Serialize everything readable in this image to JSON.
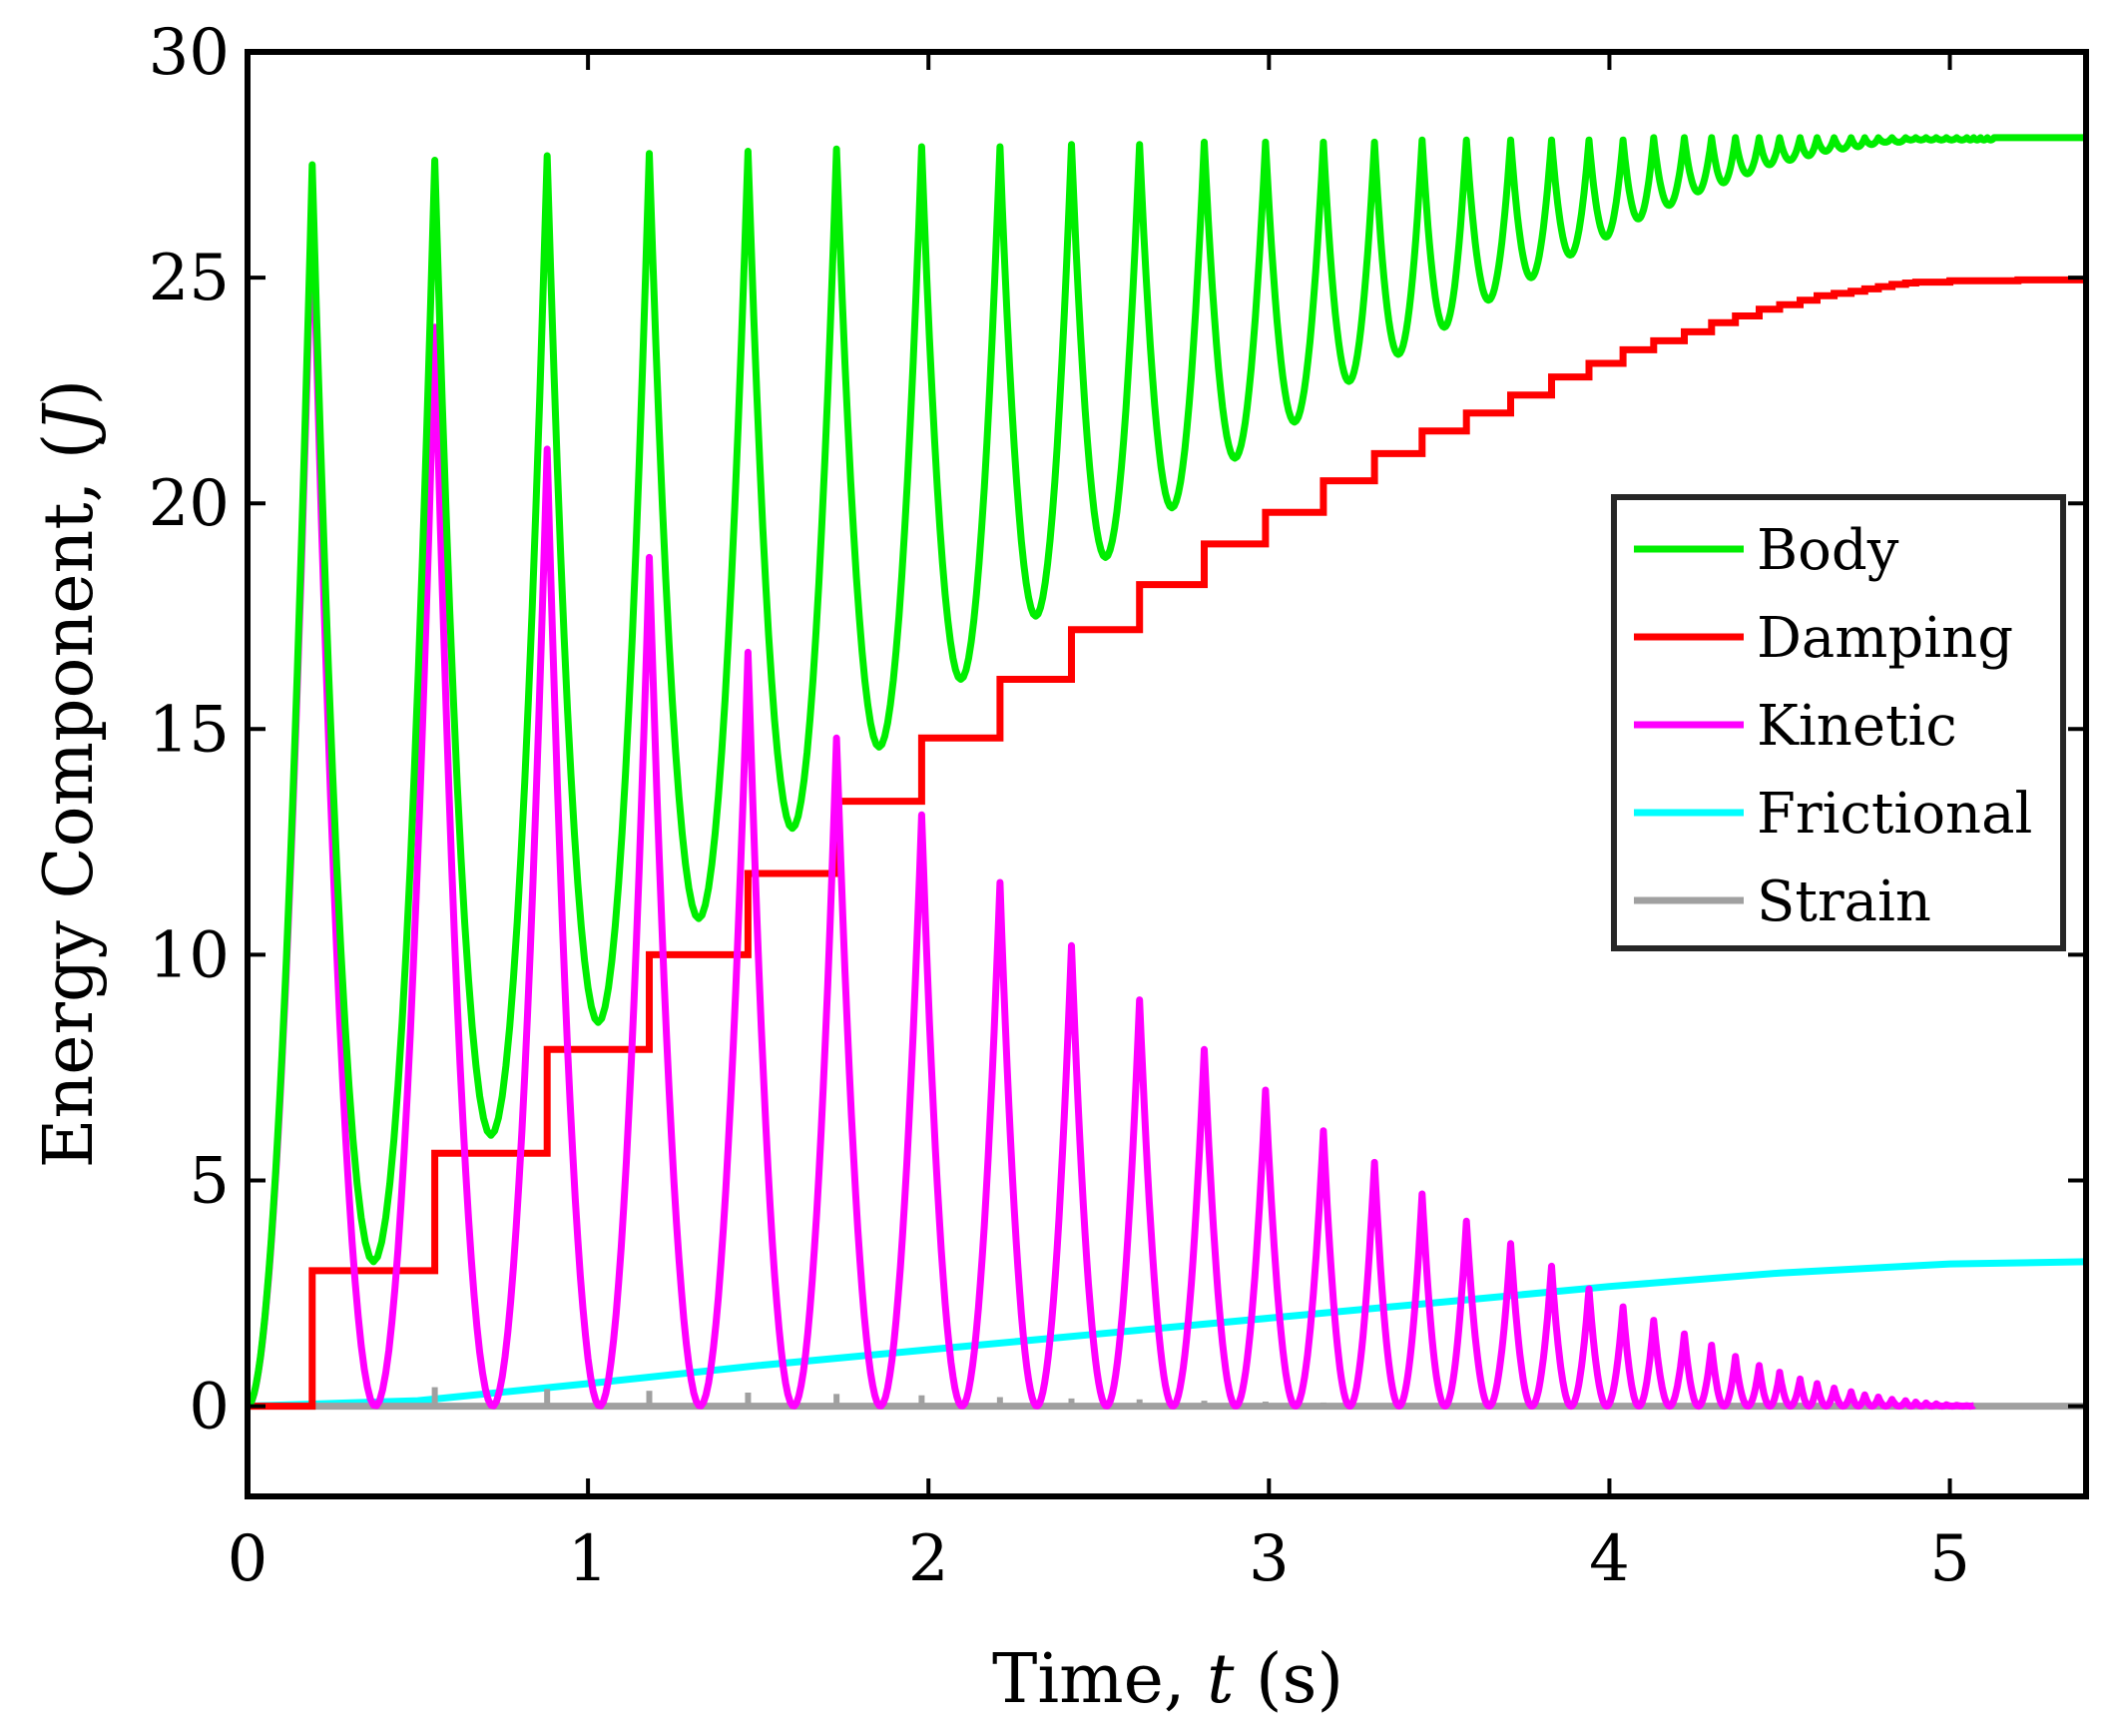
{
  "chart_data": {
    "type": "line",
    "xlabel_prefix": "Time, ",
    "xlabel_var": "t",
    "xlabel_suffix": " (s)",
    "ylabel_prefix": "Energy Component, (",
    "ylabel_var": "J",
    "ylabel_suffix": ")",
    "xlim": [
      0,
      5.4
    ],
    "ylim": [
      -2,
      30
    ],
    "xticks": [
      0,
      1,
      2,
      3,
      4,
      5
    ],
    "yticks": [
      0,
      5,
      10,
      15,
      20,
      25,
      30
    ],
    "legend_position": "right",
    "impact_times": [
      0.19,
      0.55,
      0.88,
      1.18,
      1.47,
      1.73,
      1.98,
      2.21,
      2.42,
      2.62,
      2.81,
      2.99,
      3.16,
      3.31,
      3.45,
      3.58,
      3.71,
      3.83,
      3.94,
      4.04,
      4.13,
      4.22,
      4.3,
      4.37,
      4.44,
      4.5,
      4.56,
      4.61,
      4.66,
      4.71,
      4.75,
      4.79,
      4.83,
      4.87,
      4.9,
      4.93,
      4.96,
      4.99,
      5.02,
      5.05,
      5.07,
      5.09,
      5.11,
      5.13
    ],
    "series": [
      {
        "name": "Body",
        "color": "#00ee00",
        "final_value": 28.1,
        "peaks": [
          27.5,
          27.6,
          27.7,
          27.75,
          27.8,
          27.85,
          27.9,
          27.9,
          27.95,
          27.95,
          28.0,
          28.0,
          28.0,
          28.0,
          28.05,
          28.05,
          28.05,
          28.05,
          28.05,
          28.05,
          28.1
        ],
        "minima": [
          3.2,
          6.0,
          8.5,
          10.8,
          12.8,
          14.6,
          16.1,
          17.5,
          18.8,
          19.9,
          21.0,
          21.8,
          22.7,
          23.3,
          23.9,
          24.5,
          25.0,
          25.5,
          25.9,
          26.3,
          26.6,
          26.9,
          27.1,
          27.3,
          27.5,
          27.6,
          27.7,
          27.8,
          27.85,
          27.9,
          27.95,
          28.0,
          28.0,
          28.05
        ]
      },
      {
        "name": "Damping",
        "color": "#ff0000",
        "steps": [
          [
            0,
            0
          ],
          [
            0.19,
            3.0
          ],
          [
            0.55,
            5.6
          ],
          [
            0.88,
            7.9
          ],
          [
            1.18,
            10.0
          ],
          [
            1.47,
            11.8
          ],
          [
            1.73,
            13.4
          ],
          [
            1.98,
            14.8
          ],
          [
            2.21,
            16.1
          ],
          [
            2.42,
            17.2
          ],
          [
            2.62,
            18.2
          ],
          [
            2.81,
            19.1
          ],
          [
            2.99,
            19.8
          ],
          [
            3.16,
            20.5
          ],
          [
            3.31,
            21.1
          ],
          [
            3.45,
            21.6
          ],
          [
            3.58,
            22.0
          ],
          [
            3.71,
            22.4
          ],
          [
            3.83,
            22.8
          ],
          [
            3.94,
            23.1
          ],
          [
            4.04,
            23.4
          ],
          [
            4.13,
            23.6
          ],
          [
            4.22,
            23.8
          ],
          [
            4.3,
            24.0
          ],
          [
            4.37,
            24.15
          ],
          [
            4.44,
            24.3
          ],
          [
            4.5,
            24.4
          ],
          [
            4.56,
            24.5
          ],
          [
            4.61,
            24.6
          ],
          [
            4.66,
            24.65
          ],
          [
            4.71,
            24.7
          ],
          [
            4.75,
            24.75
          ],
          [
            4.79,
            24.8
          ],
          [
            4.83,
            24.85
          ],
          [
            4.87,
            24.88
          ],
          [
            4.9,
            24.9
          ],
          [
            5.0,
            24.93
          ],
          [
            5.2,
            24.95
          ],
          [
            5.4,
            24.95
          ]
        ]
      },
      {
        "name": "Kinetic",
        "color": "#ff00ff",
        "peaks": [
          26.9,
          23.9,
          21.2,
          18.8,
          16.7,
          14.8,
          13.1,
          11.6,
          10.2,
          9.0,
          7.9,
          7.0,
          6.1,
          5.4,
          4.7,
          4.1,
          3.6,
          3.1,
          2.6,
          2.2,
          1.9,
          1.6,
          1.35,
          1.1,
          0.9,
          0.75,
          0.6,
          0.5,
          0.4,
          0.32,
          0.25,
          0.2,
          0.15,
          0.12,
          0.09,
          0.07,
          0.05,
          0.03,
          0.02,
          0.01
        ]
      },
      {
        "name": "Frictional",
        "color": "#00ffff",
        "points": [
          [
            0,
            0
          ],
          [
            0.5,
            0.12
          ],
          [
            1.0,
            0.5
          ],
          [
            1.5,
            0.9
          ],
          [
            2.0,
            1.25
          ],
          [
            2.5,
            1.6
          ],
          [
            3.0,
            1.95
          ],
          [
            3.5,
            2.3
          ],
          [
            4.0,
            2.65
          ],
          [
            4.5,
            2.95
          ],
          [
            5.0,
            3.15
          ],
          [
            5.4,
            3.2
          ]
        ]
      },
      {
        "name": "Strain",
        "color": "#a0a0a0",
        "spike_heights": [
          0.45,
          0.42,
          0.38,
          0.34,
          0.3,
          0.27,
          0.24,
          0.2,
          0.17,
          0.15,
          0.12,
          0.1,
          0.08,
          0.06,
          0.05,
          0.04,
          0.03,
          0.02
        ]
      }
    ]
  }
}
